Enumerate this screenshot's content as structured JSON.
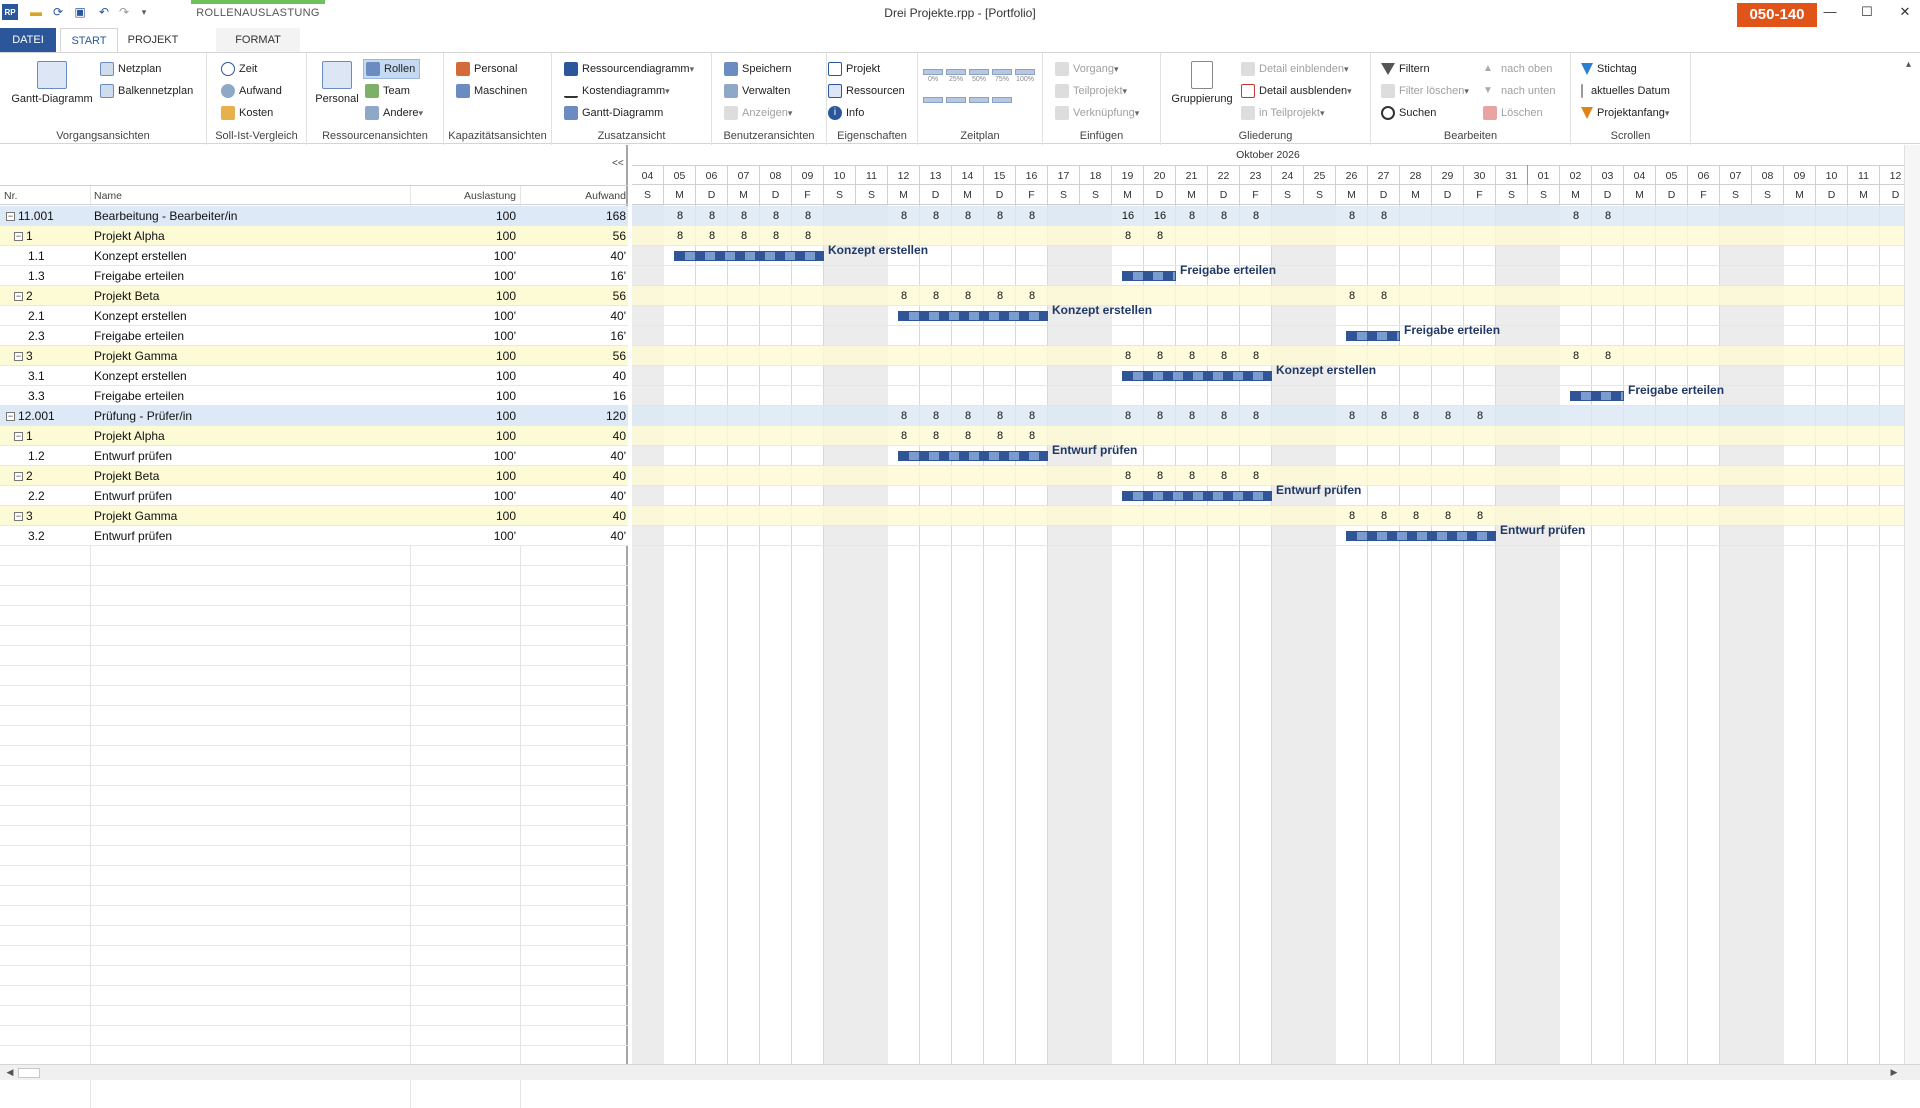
{
  "window": {
    "title": "Drei Projekte.rpp - [Portfolio]",
    "badge": "050-140",
    "minimize": "—",
    "maximize": "☐",
    "close": "✕"
  },
  "tabs": {
    "context_group": "ROLLENAUSLASTUNG",
    "datei": "DATEI",
    "start": "START",
    "projekt": "PROJEKT",
    "format": "FORMAT"
  },
  "ribbon": {
    "vorgangsansichten": {
      "label": "Vorgangsansichten",
      "gantt": "Gantt-Diagramm",
      "netzplan": "Netzplan",
      "balkennetzplan": "Balkennetzplan"
    },
    "sollist": {
      "label": "Soll-Ist-Vergleich",
      "zeit": "Zeit",
      "aufwand": "Aufwand",
      "kosten": "Kosten"
    },
    "ressourcen": {
      "label": "Ressourcenansichten",
      "personal": "Personal",
      "rollen": "Rollen",
      "team": "Team",
      "andere": "Andere"
    },
    "kapazitaet": {
      "label": "Kapazitätsansichten",
      "personal": "Personal",
      "maschinen": "Maschinen"
    },
    "zusatz": {
      "label": "Zusatzansicht",
      "ressourcendiagramm": "Ressourcendiagramm",
      "kostendiagramm": "Kostendiagramm",
      "gantt": "Gantt-Diagramm"
    },
    "benutzer": {
      "label": "Benutzeransichten",
      "speichern": "Speichern",
      "verwalten": "Verwalten",
      "anzeigen": "Anzeigen"
    },
    "eigenschaften": {
      "label": "Eigenschaften",
      "projekt": "Projekt",
      "ressourcen": "Ressourcen",
      "info": "Info"
    },
    "zeitplan": {
      "label": "Zeitplan",
      "z0": "0%",
      "z25": "25%",
      "z50": "50%",
      "z75": "75%",
      "z100": "100%"
    },
    "einfuegen": {
      "label": "Einfügen",
      "vorgang": "Vorgang",
      "teilprojekt": "Teilprojekt",
      "verknuepfung": "Verknüpfung"
    },
    "gliederung": {
      "label": "Gliederung",
      "gruppierung": "Gruppierung",
      "detail_ein": "Detail einblenden",
      "detail_aus": "Detail ausblenden",
      "in_teilprojekt": "in Teilprojekt"
    },
    "bearbeiten": {
      "label": "Bearbeiten",
      "filtern": "Filtern",
      "filter_loeschen": "Filter löschen",
      "suchen": "Suchen",
      "nach_oben": "nach oben",
      "nach_unten": "nach unten",
      "loeschen": "Löschen"
    },
    "scrollen": {
      "label": "Scrollen",
      "stichtag": "Stichtag",
      "aktuelles_datum": "aktuelles Datum",
      "projektanfang": "Projektanfang"
    }
  },
  "table": {
    "toggle": "<<",
    "headers": {
      "nr": "Nr.",
      "name": "Name",
      "auslastung": "Auslastung",
      "aufwand": "Aufwand"
    },
    "rows": [
      {
        "nr": "11.001",
        "name": "Bearbeitung - Bearbeiter/in",
        "auslastung": "100",
        "aufwand": "168",
        "level": 0,
        "toggle": "−"
      },
      {
        "nr": "1",
        "name": "Projekt Alpha",
        "auslastung": "100",
        "aufwand": "56",
        "level": 1,
        "toggle": "−"
      },
      {
        "nr": "1.1",
        "name": "Konzept erstellen",
        "auslastung": "100'",
        "aufwand": "40'",
        "level": 2,
        "toggle": ""
      },
      {
        "nr": "1.3",
        "name": "Freigabe erteilen",
        "auslastung": "100'",
        "aufwand": "16'",
        "level": 2,
        "toggle": ""
      },
      {
        "nr": "2",
        "name": "Projekt Beta",
        "auslastung": "100",
        "aufwand": "56",
        "level": 1,
        "toggle": "−"
      },
      {
        "nr": "2.1",
        "name": "Konzept erstellen",
        "auslastung": "100'",
        "aufwand": "40'",
        "level": 2,
        "toggle": ""
      },
      {
        "nr": "2.3",
        "name": "Freigabe erteilen",
        "auslastung": "100'",
        "aufwand": "16'",
        "level": 2,
        "toggle": ""
      },
      {
        "nr": "3",
        "name": "Projekt Gamma",
        "auslastung": "100",
        "aufwand": "56",
        "level": 1,
        "toggle": "−"
      },
      {
        "nr": "3.1",
        "name": "Konzept erstellen",
        "auslastung": "100",
        "aufwand": "40",
        "level": 2,
        "toggle": ""
      },
      {
        "nr": "3.3",
        "name": "Freigabe erteilen",
        "auslastung": "100",
        "aufwand": "16",
        "level": 2,
        "toggle": ""
      },
      {
        "nr": "12.001",
        "name": "Prüfung - Prüfer/in",
        "auslastung": "100",
        "aufwand": "120",
        "level": 0,
        "toggle": "−"
      },
      {
        "nr": "1",
        "name": "Projekt Alpha",
        "auslastung": "100",
        "aufwand": "40",
        "level": 1,
        "toggle": "−"
      },
      {
        "nr": "1.2",
        "name": "Entwurf prüfen",
        "auslastung": "100'",
        "aufwand": "40'",
        "level": 2,
        "toggle": ""
      },
      {
        "nr": "2",
        "name": "Projekt Beta",
        "auslastung": "100",
        "aufwand": "40",
        "level": 1,
        "toggle": "−"
      },
      {
        "nr": "2.2",
        "name": "Entwurf prüfen",
        "auslastung": "100'",
        "aufwand": "40'",
        "level": 2,
        "toggle": ""
      },
      {
        "nr": "3",
        "name": "Projekt Gamma",
        "auslastung": "100",
        "aufwand": "40",
        "level": 1,
        "toggle": "−"
      },
      {
        "nr": "3.2",
        "name": "Entwurf prüfen",
        "auslastung": "100'",
        "aufwand": "40'",
        "level": 2,
        "toggle": ""
      }
    ]
  },
  "timeline": {
    "month": "Oktober 2026",
    "days": [
      "04",
      "05",
      "06",
      "07",
      "08",
      "09",
      "10",
      "11",
      "12",
      "13",
      "14",
      "15",
      "16",
      "17",
      "18",
      "19",
      "20",
      "21",
      "22",
      "23",
      "24",
      "25",
      "26",
      "27",
      "28",
      "29",
      "30",
      "31",
      "01",
      "02",
      "03",
      "04",
      "05",
      "06",
      "07",
      "08",
      "09",
      "10",
      "11",
      "12"
    ],
    "weekdays": [
      "S",
      "M",
      "D",
      "M",
      "D",
      "F",
      "S",
      "S",
      "M",
      "D",
      "M",
      "D",
      "F",
      "S",
      "S",
      "M",
      "D",
      "M",
      "D",
      "F",
      "S",
      "S",
      "M",
      "D",
      "M",
      "D",
      "F",
      "S",
      "S",
      "M",
      "D",
      "M",
      "D",
      "F",
      "S",
      "S",
      "M",
      "D",
      "M",
      "D"
    ],
    "weekend_index": [
      0,
      6,
      7,
      13,
      14,
      20,
      21,
      27,
      28,
      34,
      35
    ],
    "values": [
      {
        "row": 0,
        "cells": [
          [
            1,
            "8"
          ],
          [
            2,
            "8"
          ],
          [
            3,
            "8"
          ],
          [
            4,
            "8"
          ],
          [
            5,
            "8"
          ],
          [
            8,
            "8"
          ],
          [
            9,
            "8"
          ],
          [
            10,
            "8"
          ],
          [
            11,
            "8"
          ],
          [
            12,
            "8"
          ],
          [
            15,
            "16"
          ],
          [
            16,
            "16"
          ],
          [
            17,
            "8"
          ],
          [
            18,
            "8"
          ],
          [
            19,
            "8"
          ],
          [
            22,
            "8"
          ],
          [
            23,
            "8"
          ],
          [
            29,
            "8"
          ],
          [
            30,
            "8"
          ]
        ]
      },
      {
        "row": 1,
        "cells": [
          [
            1,
            "8"
          ],
          [
            2,
            "8"
          ],
          [
            3,
            "8"
          ],
          [
            4,
            "8"
          ],
          [
            5,
            "8"
          ],
          [
            15,
            "8"
          ],
          [
            16,
            "8"
          ]
        ]
      },
      {
        "row": 4,
        "cells": [
          [
            8,
            "8"
          ],
          [
            9,
            "8"
          ],
          [
            10,
            "8"
          ],
          [
            11,
            "8"
          ],
          [
            12,
            "8"
          ],
          [
            22,
            "8"
          ],
          [
            23,
            "8"
          ]
        ]
      },
      {
        "row": 7,
        "cells": [
          [
            15,
            "8"
          ],
          [
            16,
            "8"
          ],
          [
            17,
            "8"
          ],
          [
            18,
            "8"
          ],
          [
            19,
            "8"
          ],
          [
            29,
            "8"
          ],
          [
            30,
            "8"
          ]
        ]
      },
      {
        "row": 10,
        "cells": [
          [
            8,
            "8"
          ],
          [
            9,
            "8"
          ],
          [
            10,
            "8"
          ],
          [
            11,
            "8"
          ],
          [
            12,
            "8"
          ],
          [
            15,
            "8"
          ],
          [
            16,
            "8"
          ],
          [
            17,
            "8"
          ],
          [
            18,
            "8"
          ],
          [
            19,
            "8"
          ],
          [
            22,
            "8"
          ],
          [
            23,
            "8"
          ],
          [
            24,
            "8"
          ],
          [
            25,
            "8"
          ],
          [
            26,
            "8"
          ]
        ]
      },
      {
        "row": 11,
        "cells": [
          [
            8,
            "8"
          ],
          [
            9,
            "8"
          ],
          [
            10,
            "8"
          ],
          [
            11,
            "8"
          ],
          [
            12,
            "8"
          ]
        ]
      },
      {
        "row": 13,
        "cells": [
          [
            15,
            "8"
          ],
          [
            16,
            "8"
          ],
          [
            17,
            "8"
          ],
          [
            18,
            "8"
          ],
          [
            19,
            "8"
          ]
        ]
      },
      {
        "row": 15,
        "cells": [
          [
            22,
            "8"
          ],
          [
            23,
            "8"
          ],
          [
            24,
            "8"
          ],
          [
            25,
            "8"
          ],
          [
            26,
            "8"
          ]
        ]
      }
    ],
    "bars": [
      {
        "row": 2,
        "start": 1,
        "days": 5,
        "label": "Konzept erstellen"
      },
      {
        "row": 3,
        "start": 15,
        "days": 2,
        "label": "Freigabe erteilen"
      },
      {
        "row": 5,
        "start": 8,
        "days": 5,
        "label": "Konzept erstellen"
      },
      {
        "row": 6,
        "start": 22,
        "days": 2,
        "label": "Freigabe erteilen"
      },
      {
        "row": 8,
        "start": 15,
        "days": 5,
        "label": "Konzept erstellen"
      },
      {
        "row": 9,
        "start": 29,
        "days": 2,
        "label": "Freigabe erteilen"
      },
      {
        "row": 12,
        "start": 8,
        "days": 5,
        "label": "Entwurf prüfen"
      },
      {
        "row": 14,
        "start": 15,
        "days": 5,
        "label": "Entwurf prüfen"
      },
      {
        "row": 16,
        "start": 22,
        "days": 5,
        "label": "Entwurf prüfen"
      }
    ]
  },
  "colors": {
    "accent": "#2b579a",
    "badge": "#e0541a",
    "context": "#6ec05a",
    "bar": "#2f5597",
    "row_top": "#dde9f6",
    "row_project": "#fdfbd5",
    "weekend": "#ececec"
  }
}
